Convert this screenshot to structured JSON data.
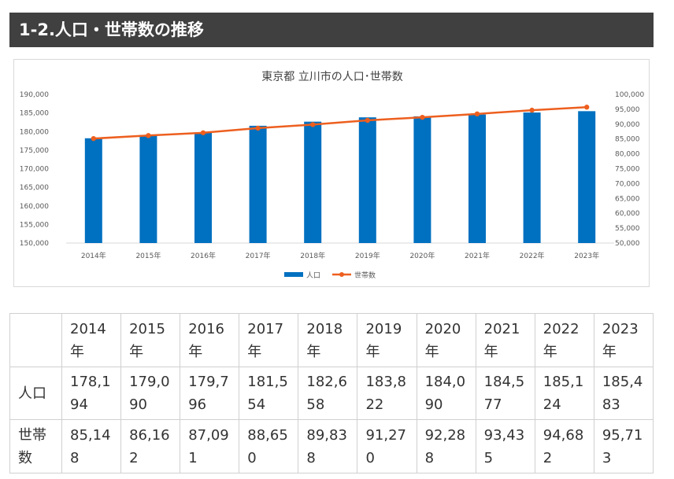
{
  "header": {
    "title": "1-2.人口・世帯数の推移"
  },
  "chart_data": {
    "type": "bar+line",
    "title": "東京都 立川市の人口･世帯数",
    "categories": [
      "2014年",
      "2015年",
      "2016年",
      "2017年",
      "2018年",
      "2019年",
      "2020年",
      "2021年",
      "2022年",
      "2023年"
    ],
    "series": [
      {
        "name": "人口",
        "type": "bar",
        "axis": "left",
        "color": "#0070c0",
        "values": [
          178194,
          179090,
          179796,
          181554,
          182658,
          183822,
          184090,
          184577,
          185124,
          185483
        ]
      },
      {
        "name": "世帯数",
        "type": "line",
        "axis": "right",
        "color": "#ed5f1f",
        "values": [
          85148,
          86162,
          87091,
          88650,
          89838,
          91270,
          92288,
          93435,
          94682,
          95713
        ]
      }
    ],
    "y_left": {
      "min": 150000,
      "max": 190000,
      "step": 5000,
      "ticks": [
        "150,000",
        "155,000",
        "160,000",
        "165,000",
        "170,000",
        "175,000",
        "180,000",
        "185,000",
        "190,000"
      ]
    },
    "y_right": {
      "min": 50000,
      "max": 100000,
      "step": 5000,
      "ticks": [
        "50,000",
        "55,000",
        "60,000",
        "65,000",
        "70,000",
        "75,000",
        "80,000",
        "85,000",
        "90,000",
        "95,000",
        "100,000"
      ]
    },
    "legend": {
      "position": "bottom",
      "items": [
        "人口",
        "世帯数"
      ]
    }
  },
  "table": {
    "header": [
      "",
      "2014年",
      "2015年",
      "2016年",
      "2017年",
      "2018年",
      "2019年",
      "2020年",
      "2021年",
      "2022年",
      "2023年"
    ],
    "rows": [
      {
        "label": "人口",
        "values": [
          "178,194",
          "179,090",
          "179,796",
          "181,554",
          "182,658",
          "183,822",
          "184,090",
          "184,577",
          "185,124",
          "185,483"
        ]
      },
      {
        "label": "世帯数",
        "values": [
          "85,148",
          "86,162",
          "87,091",
          "88,650",
          "89,838",
          "91,270",
          "92,288",
          "93,435",
          "94,682",
          "95,713"
        ]
      }
    ]
  }
}
